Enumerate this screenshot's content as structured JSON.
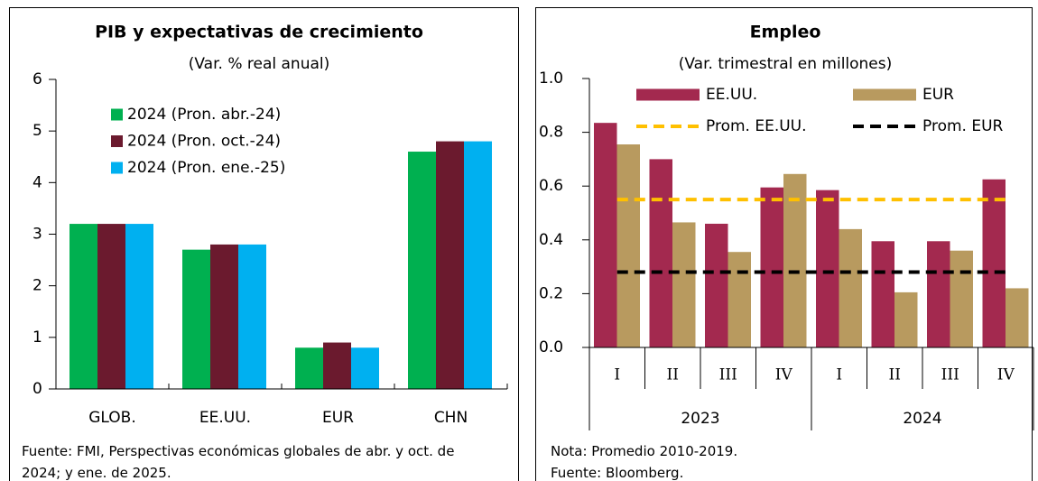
{
  "chart_data": [
    {
      "type": "bar",
      "title": "PIB y expectativas de crecimiento",
      "subtitle": "(Var. % real anual)",
      "categories": [
        "GLOB.",
        "EE.UU.",
        "EUR",
        "CHN"
      ],
      "series": [
        {
          "name": "2024 (Pron. abr.-24)",
          "color": "#00b050",
          "values": [
            3.2,
            2.7,
            0.8,
            4.6
          ]
        },
        {
          "name": "2024 (Pron. oct.-24)",
          "color": "#6b1a2e",
          "values": [
            3.2,
            2.8,
            0.9,
            4.8
          ]
        },
        {
          "name": "2024 (Pron. ene.-25)",
          "color": "#00b0f0",
          "values": [
            3.2,
            2.8,
            0.8,
            4.8
          ]
        }
      ],
      "ylim": [
        0,
        6
      ],
      "yticks": [
        0,
        1,
        2,
        3,
        4,
        5,
        6
      ],
      "legend": "upper left",
      "note": "Fuente: FMI, Perspectivas económicas globales de abr. y oct. de 2024; y ene. de 2025."
    },
    {
      "type": "bar",
      "title": "Empleo",
      "subtitle": "(Var. trimestral en millones)",
      "categories": [
        "I",
        "II",
        "III",
        "IV",
        "I",
        "II",
        "III",
        "IV"
      ],
      "groups": [
        "2023",
        "2024"
      ],
      "series": [
        {
          "name": "EE.UU.",
          "color": "#a3294f",
          "values": [
            0.835,
            0.7,
            0.46,
            0.595,
            0.585,
            0.395,
            0.395,
            0.625
          ]
        },
        {
          "name": "EUR",
          "color": "#b89a5f",
          "values": [
            0.755,
            0.465,
            0.355,
            0.645,
            0.44,
            0.205,
            0.36,
            0.22
          ]
        }
      ],
      "lines": [
        {
          "name": "Prom. EE.UU.",
          "color": "#ffc000",
          "value": 0.55,
          "style": "dashed"
        },
        {
          "name": "Prom. EUR",
          "color": "#000000",
          "value": 0.28,
          "style": "dashed"
        }
      ],
      "ylim": [
        0,
        1
      ],
      "yticks": [
        {
          "value": 0,
          "label": "0.0"
        },
        0.2,
        0.4,
        0.6,
        0.8,
        {
          "value": 1,
          "label": "1.0"
        }
      ],
      "legend": "upper right",
      "notes": [
        "Nota: Promedio 2010-2019.",
        "Fuente: Bloomberg."
      ]
    }
  ]
}
